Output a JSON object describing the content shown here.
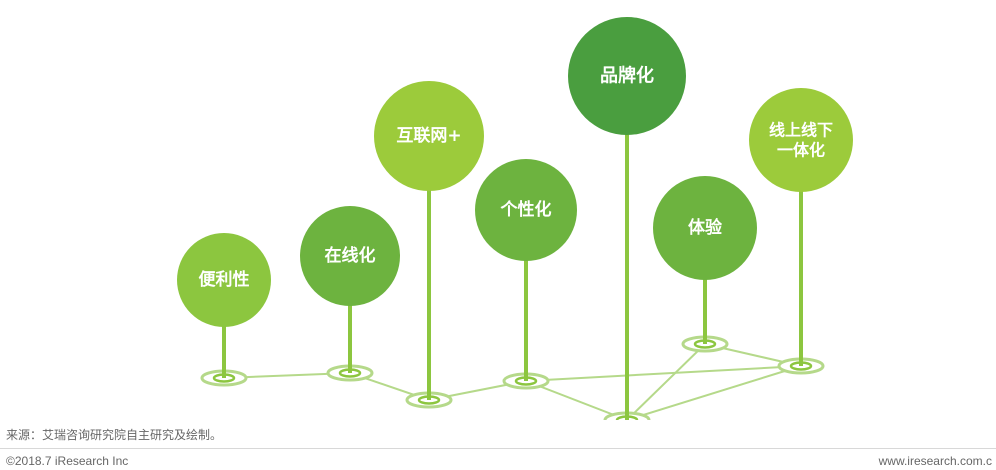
{
  "diagram": {
    "pins": [
      {
        "id": "bianlixing",
        "label": [
          "便利性"
        ],
        "color": "#8cc63f"
      },
      {
        "id": "zaixianhua",
        "label": [
          "在线化"
        ],
        "color": "#6db33f"
      },
      {
        "id": "hulianwang",
        "label": [
          "互联网+"
        ],
        "color": "#9ccb3b"
      },
      {
        "id": "gexinghua",
        "label": [
          "个性化"
        ],
        "color": "#6db33f"
      },
      {
        "id": "pinpaihua",
        "label": [
          "品牌化"
        ],
        "color": "#4a9e3f"
      },
      {
        "id": "tiyan",
        "label": [
          "体验"
        ],
        "color": "#6db33f"
      },
      {
        "id": "xianshangxianxia",
        "label": [
          "线上线下",
          "一体化"
        ],
        "color": "#9ccb3b"
      }
    ],
    "stem_color": "#8cc63f",
    "network_color": "#b5d98a"
  },
  "footer": {
    "source": "来源：艾瑞咨询研究院自主研究及绘制。",
    "copyright": "©2018.7 iResearch Inc",
    "website": "www.iresearch.com.c"
  }
}
